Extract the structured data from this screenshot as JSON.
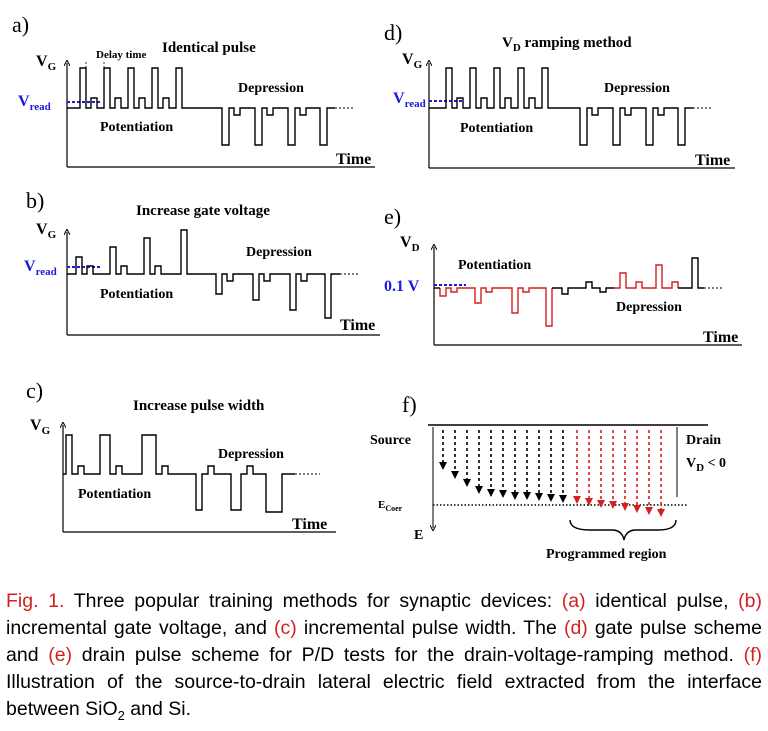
{
  "panels": {
    "a": {
      "label": "a)",
      "title": "Identical pulse",
      "vg": "V",
      "vg_sub": "G",
      "vread": "V",
      "vread_sub": "read",
      "delay": "Delay time",
      "potentiation": "Potentiation",
      "depression": "Depression",
      "time": "Time"
    },
    "b": {
      "label": "b)",
      "title": "Increase gate voltage",
      "vg": "V",
      "vg_sub": "G",
      "vread": "V",
      "vread_sub": "read",
      "potentiation": "Potentiation",
      "depression": "Depression",
      "time": "Time"
    },
    "c": {
      "label": "c)",
      "title": "Increase pulse width",
      "vg": "V",
      "vg_sub": "G",
      "potentiation": "Potentiation",
      "depression": "Depression",
      "time": "Time"
    },
    "d": {
      "label": "d)",
      "title_v": "V",
      "title_sub": "D",
      "title_rest": " ramping method",
      "vg": "V",
      "vg_sub": "G",
      "vread": "V",
      "vread_sub": "read",
      "potentiation": "Potentiation",
      "depression": "Depression",
      "time": "Time"
    },
    "e": {
      "label": "e)",
      "vd": "V",
      "vd_sub": "D",
      "vlevel": "0.1 V",
      "potentiation": "Potentiation",
      "depression": "Depression",
      "time": "Time"
    },
    "f": {
      "label": "f)",
      "source": "Source",
      "drain": "Drain",
      "vd": "V",
      "vd_sub": "D",
      "vd_rest": " < 0",
      "ecoer": "E",
      "ecoer_sub": "Coer",
      "e": "E",
      "region": "Programmed region"
    }
  },
  "colors": {
    "blue": "#1a1adf",
    "red": "#d42020",
    "black": "#000000"
  },
  "caption": {
    "fig": "Fig. 1.",
    "t1": " Three popular training methods for synaptic devices: ",
    "a": "(a)",
    "t2": " identical pulse, ",
    "b": "(b)",
    "t3": " incremental gate voltage, and ",
    "c": "(c)",
    "t4": " incremental pulse width. The ",
    "d": "(d)",
    "t5": " gate pulse scheme and ",
    "e": "(e)",
    "t6": " drain pulse scheme for P/D tests for the drain-voltage-ramping method. ",
    "f": "(f)",
    "t7": " Illustration of the source-to-drain lateral electric field extracted from the interface between SiO",
    "sub2": "2",
    "t8": " and Si."
  }
}
